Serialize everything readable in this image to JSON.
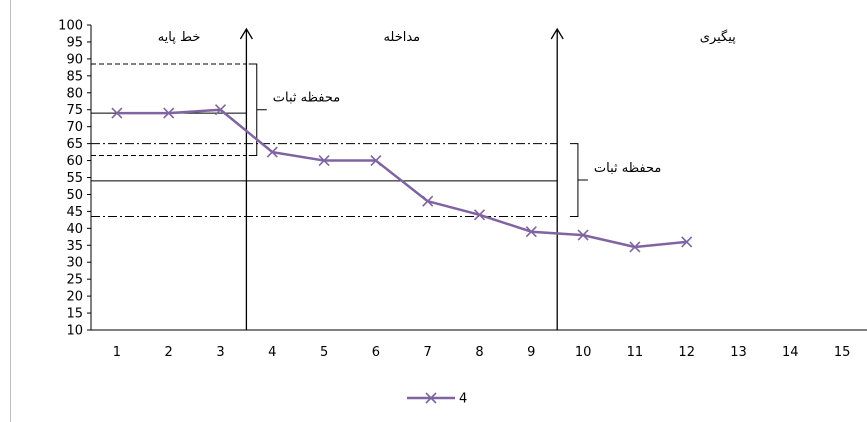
{
  "chart_data": {
    "type": "line",
    "x": [
      1,
      2,
      3,
      4,
      5,
      6,
      7,
      8,
      9,
      10,
      11,
      12
    ],
    "x_tick_labels": [
      "1",
      "2",
      "3",
      "4",
      "5",
      "6",
      "7",
      "8",
      "9",
      "10",
      "11",
      "12",
      "13",
      "14",
      "15"
    ],
    "y_tick_labels": [
      "10",
      "15",
      "20",
      "25",
      "30",
      "35",
      "40",
      "45",
      "50",
      "55",
      "60",
      "65",
      "70",
      "75",
      "80",
      "85",
      "90",
      "95",
      "100"
    ],
    "ylim": [
      10,
      100
    ],
    "xlim": [
      0.5,
      15.5
    ],
    "series": [
      {
        "name": "4",
        "color": "#8064a2",
        "marker": "x",
        "values": [
          74,
          74,
          75,
          62.5,
          60,
          60,
          48,
          44,
          39,
          38,
          34.5,
          36
        ]
      }
    ],
    "phase_lines_x": [
      3.5,
      9.5
    ],
    "phases": [
      {
        "label": "خط پایه",
        "x": 2.2
      },
      {
        "label": "مداخله",
        "x": 6.5
      },
      {
        "label": "پیگیری",
        "x": 12.6
      }
    ],
    "reference_lines": [
      {
        "y": 88.5,
        "style": "dashed",
        "x_from": 0.5,
        "x_to": 3.5
      },
      {
        "y": 74,
        "style": "solid",
        "x_from": 0.5,
        "x_to": 3.5
      },
      {
        "y": 61.5,
        "style": "dashed",
        "x_from": 0.5,
        "x_to": 3.5
      },
      {
        "y": 65,
        "style": "dashdot",
        "x_from": 0.5,
        "x_to": 9.5
      },
      {
        "y": 54,
        "style": "solid",
        "x_from": 0.5,
        "x_to": 9.5
      },
      {
        "y": 43.5,
        "style": "dashdot",
        "x_from": 0.5,
        "x_to": 9.5
      }
    ],
    "stability_envelopes": [
      {
        "label": "محفظه ثبات",
        "y_top": 88.5,
        "y_bottom": 61.5,
        "x": 3.7
      },
      {
        "label": "محفظه ثبات",
        "y_top": 65,
        "y_bottom": 43.5,
        "x": 9.9
      }
    ],
    "legend": {
      "position": "bottom-center",
      "label": "4"
    },
    "grid": false
  }
}
